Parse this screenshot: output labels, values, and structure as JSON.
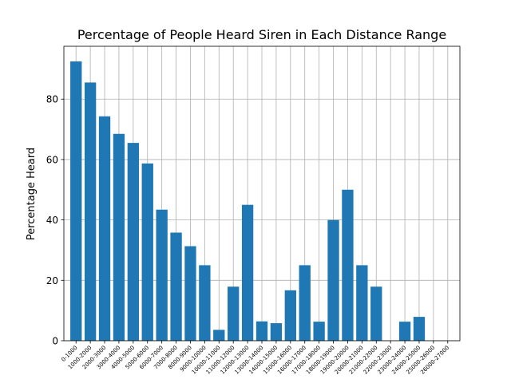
{
  "chart_data": {
    "type": "bar",
    "title": "Percentage of People Heard Siren in Each Distance Range",
    "xlabel": "",
    "ylabel": "Percentage Heard",
    "ylim": [
      0,
      97.5
    ],
    "yticks": [
      0,
      20,
      40,
      60,
      80
    ],
    "grid": true,
    "legend": "none",
    "colors": {
      "bar": "#1f77b4",
      "grid": "#b0b0b0",
      "axis": "#000000"
    },
    "categories": [
      "0-1000",
      "1000-2000",
      "2000-3000",
      "3000-4000",
      "4000-5000",
      "5000-6000",
      "6000-7000",
      "7000-8000",
      "8000-9000",
      "9000-10000",
      "10000-11000",
      "11000-12000",
      "12000-13000",
      "13000-14000",
      "14000-15000",
      "15000-16000",
      "16000-17000",
      "17000-18000",
      "18000-19000",
      "19000-20000",
      "20000-21000",
      "21000-22000",
      "22000-23000",
      "23000-24000",
      "24000-25000",
      "25000-26000",
      "26000-27000"
    ],
    "values": [
      92.5,
      85.5,
      74.3,
      68.5,
      65.5,
      58.7,
      43.4,
      35.8,
      31.3,
      25.0,
      3.6,
      17.9,
      45.0,
      6.4,
      5.8,
      16.7,
      25.0,
      6.3,
      40.0,
      50.0,
      25.0,
      17.9,
      0,
      6.3,
      7.9,
      0,
      0
    ]
  }
}
